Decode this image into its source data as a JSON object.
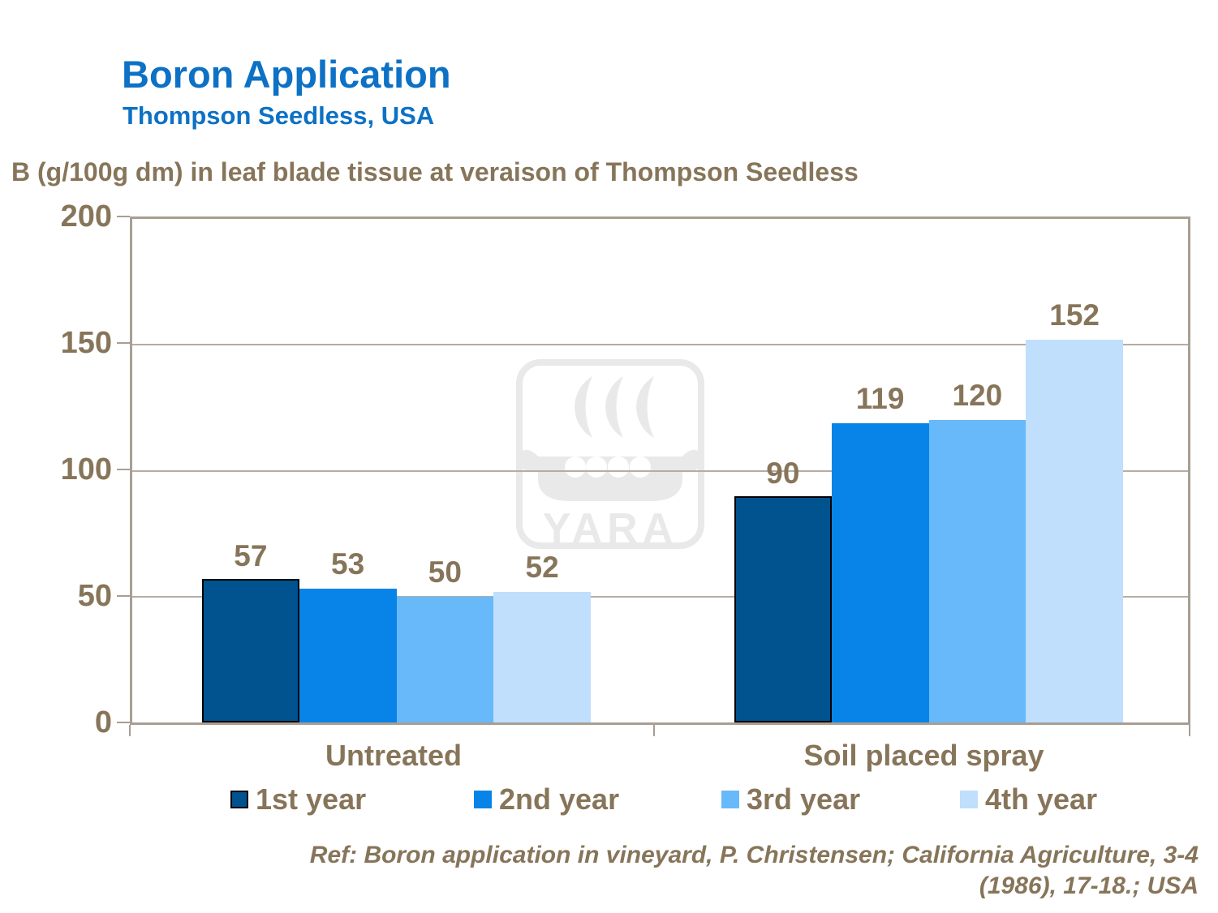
{
  "slide": {
    "title": "Boron Application",
    "subtitle": "Thompson Seedless, USA",
    "reference_lines": [
      "Ref: Boron application in vineyard, P. Christensen; California Agriculture, 3-4",
      "(1986), 17-18.; USA"
    ]
  },
  "chart_data": {
    "type": "bar",
    "title": "B (g/100g dm) in leaf blade tissue at veraison of Thompson Seedless",
    "categories": [
      "Untreated",
      "Soil placed spray"
    ],
    "series": [
      {
        "name": "1st year",
        "color": "#00538e",
        "values": [
          57,
          90
        ]
      },
      {
        "name": "2nd year",
        "color": "#0884e8",
        "values": [
          53,
          119
        ]
      },
      {
        "name": "3rd year",
        "color": "#67b9fa",
        "values": [
          50,
          120
        ]
      },
      {
        "name": "4th year",
        "color": "#bfdffc",
        "values": [
          52,
          152
        ]
      }
    ],
    "ylim": [
      0,
      200
    ],
    "yticks": [
      0,
      50,
      100,
      150,
      200
    ],
    "grid": true,
    "legend_position": "bottom",
    "watermark_text": "YARA"
  },
  "colors": {
    "title_blue": "#0d71c5",
    "text_brown": "#87755a",
    "axis_line": "#a89e94",
    "gridline": "#b7ada2",
    "bar_outline": "#000000",
    "watermark_gray": "#e9e9e9"
  }
}
